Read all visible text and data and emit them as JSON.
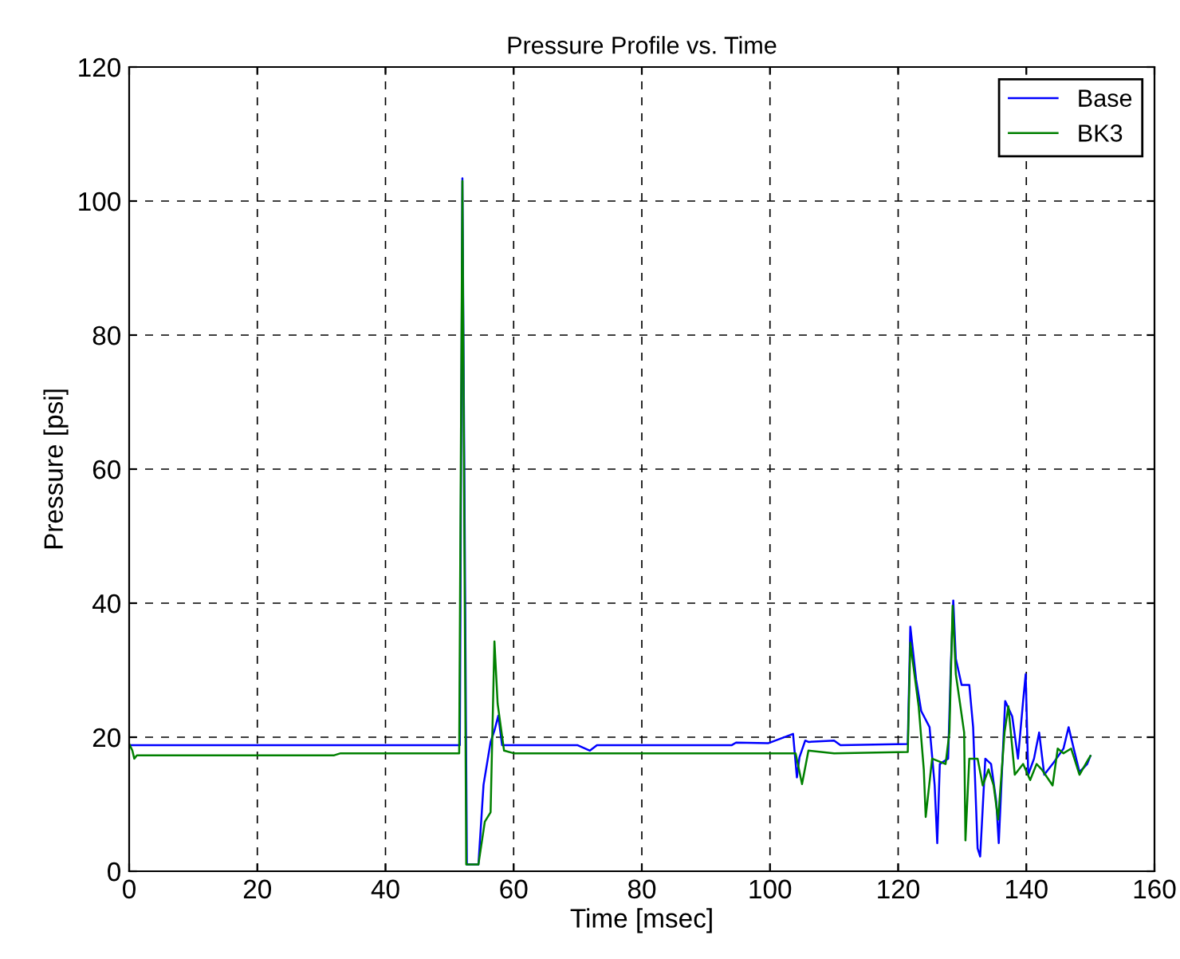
{
  "chart_data": {
    "type": "line",
    "title": "Pressure Profile vs. Time",
    "xlabel": "Time [msec]",
    "ylabel": "Pressure [psi]",
    "xlim": [
      0,
      160
    ],
    "ylim": [
      0,
      120
    ],
    "xticks": [
      0,
      20,
      40,
      60,
      80,
      100,
      120,
      140,
      160
    ],
    "yticks": [
      0,
      20,
      40,
      60,
      80,
      100,
      120
    ],
    "grid": true,
    "legend": "top right",
    "marker": "none",
    "line_style": "solid",
    "series": [
      {
        "name": "Base",
        "color": "#0000ff",
        "x": [
          0,
          51.6,
          52.0,
          52.3,
          52.7,
          54.5,
          55.3,
          56.4,
          57.0,
          57.6,
          58.2,
          60,
          70,
          71.9,
          73,
          94,
          94.7,
          99.7,
          103.6,
          104.2,
          104.6,
          105.5,
          106,
          110,
          111,
          121.5,
          121.9,
          122.8,
          123.6,
          124.9,
          125.7,
          126.1,
          126.5,
          127.8,
          128.2,
          128.6,
          129,
          129.9,
          131.1,
          131.7,
          132.4,
          132.8,
          133.6,
          134.5,
          135.3,
          135.7,
          136.7,
          137.8,
          138.7,
          139.5,
          139.9,
          140.3,
          141.2,
          142,
          142.8,
          144.1,
          145.8,
          146.6,
          147.4,
          148.3,
          149.5,
          150
        ],
        "values": [
          18.8,
          18.8,
          103.4,
          60,
          1,
          1,
          12.9,
          19.3,
          21,
          23.2,
          18.8,
          18.8,
          18.8,
          18,
          18.8,
          18.8,
          19.2,
          19.1,
          20.5,
          14,
          17,
          19.5,
          19.3,
          19.5,
          18.8,
          19.0,
          36.5,
          28.6,
          23.9,
          21.5,
          12.8,
          4.2,
          16,
          16.8,
          30.2,
          40.4,
          31.7,
          27.8,
          27.8,
          21.5,
          3.4,
          2.2,
          16.8,
          16,
          10.5,
          4.2,
          25.4,
          23.1,
          16.8,
          25.4,
          29.4,
          14.4,
          16.8,
          20.7,
          14.4,
          16,
          18.3,
          21.5,
          18.3,
          14.8,
          16,
          17.2
        ]
      },
      {
        "name": "BK3",
        "color": "#008000",
        "x": [
          0,
          0.5,
          0.8,
          1.2,
          32,
          33,
          51.5,
          52.0,
          52.6,
          54.5,
          55.5,
          56.4,
          57.0,
          57.5,
          58.5,
          60,
          104,
          105,
          106,
          110,
          121.5,
          121.9,
          123.2,
          124,
          124.3,
          125.3,
          127.4,
          128,
          128.5,
          129,
          130.3,
          130.5,
          131.1,
          132.4,
          133.2,
          134.1,
          134.9,
          135.6,
          136.6,
          137.2,
          138.2,
          139.5,
          140.6,
          141.6,
          142.4,
          144.1,
          144.9,
          145.8,
          147,
          148.3,
          149.5,
          150
        ],
        "values": [
          19,
          18,
          16.8,
          17.3,
          17.3,
          17.6,
          17.6,
          103,
          1,
          1,
          7.4,
          8.8,
          34.3,
          25,
          18,
          17.6,
          17.6,
          13,
          18,
          17.6,
          17.8,
          34.1,
          24.6,
          15.2,
          8.1,
          16.8,
          16,
          20.7,
          39.6,
          29.4,
          20.7,
          4.6,
          16.8,
          16.8,
          12.8,
          15.2,
          12.8,
          7.7,
          20.7,
          24.6,
          14.4,
          16,
          13.6,
          16,
          15.2,
          12.8,
          18.3,
          17.6,
          18.3,
          14.4,
          16.4,
          17.2
        ]
      }
    ]
  }
}
